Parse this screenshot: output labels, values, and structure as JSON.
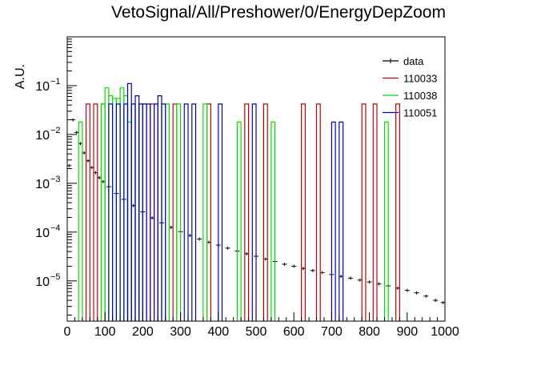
{
  "chart_data": {
    "type": "line",
    "title": "VetoSignal/All/Preshower/0/EnergyDepZoom",
    "xlabel": "",
    "ylabel": "A.U.",
    "xlim": [
      0,
      1000
    ],
    "ylim": [
      1.5e-06,
      1
    ],
    "yscale": "log",
    "grid": false,
    "legend_position": "top-right",
    "x_ticks": [
      0,
      100,
      200,
      300,
      400,
      500,
      600,
      700,
      800,
      900,
      1000
    ],
    "x_tick_labels": [
      "0",
      "100",
      "200",
      "300",
      "400",
      "500",
      "600",
      "700",
      "800",
      "900",
      "1000"
    ],
    "y_ticks": [
      {
        "value": 1e-05,
        "base": "10",
        "exp": "−5"
      },
      {
        "value": 0.0001,
        "base": "10",
        "exp": "−4"
      },
      {
        "value": 0.001,
        "base": "10",
        "exp": "−3"
      },
      {
        "value": 0.01,
        "base": "10",
        "exp": "−2"
      },
      {
        "value": 0.1,
        "base": "10",
        "exp": "−1"
      }
    ],
    "series": [
      {
        "name": "data",
        "color": "#000000",
        "style": "errorbar",
        "points": [
          [
            5,
            0.0023
          ],
          [
            15,
            0.02
          ],
          [
            25,
            0.011
          ],
          [
            35,
            0.0065
          ],
          [
            45,
            0.0042
          ],
          [
            55,
            0.0029
          ],
          [
            65,
            0.0021
          ],
          [
            75,
            0.00165
          ],
          [
            85,
            0.0013
          ],
          [
            95,
            0.00108
          ],
          [
            110,
            0.00085
          ],
          [
            130,
            0.00062
          ],
          [
            150,
            0.00047
          ],
          [
            175,
            0.00035
          ],
          [
            200,
            0.00026
          ],
          [
            225,
            0.000195
          ],
          [
            250,
            0.000155
          ],
          [
            275,
            0.000125
          ],
          [
            300,
            0.000102
          ],
          [
            325,
            8.5e-05
          ],
          [
            350,
            7.2e-05
          ],
          [
            375,
            6.2e-05
          ],
          [
            400,
            5.4e-05
          ],
          [
            425,
            4.7e-05
          ],
          [
            450,
            4.1e-05
          ],
          [
            475,
            3.6e-05
          ],
          [
            500,
            3.2e-05
          ],
          [
            525,
            2.8e-05
          ],
          [
            550,
            2.5e-05
          ],
          [
            575,
            2.2e-05
          ],
          [
            600,
            2e-05
          ],
          [
            625,
            1.8e-05
          ],
          [
            650,
            1.63e-05
          ],
          [
            675,
            1.48e-05
          ],
          [
            700,
            1.35e-05
          ],
          [
            725,
            1.24e-05
          ],
          [
            750,
            1.14e-05
          ],
          [
            775,
            1.04e-05
          ],
          [
            800,
            9.5e-06
          ],
          [
            825,
            8.7e-06
          ],
          [
            850,
            7.9e-06
          ],
          [
            875,
            7.1e-06
          ],
          [
            900,
            6.4e-06
          ],
          [
            925,
            5.7e-06
          ],
          [
            950,
            4.9e-06
          ],
          [
            975,
            4e-06
          ],
          [
            995,
            3.6e-06
          ]
        ]
      },
      {
        "name": "110033",
        "color": "#cc0000",
        "style": "step",
        "bin_width": 10,
        "bins": [
          [
            50,
            0.042
          ],
          [
            70,
            0.042
          ],
          [
            90,
            0.042
          ],
          [
            220,
            0.042
          ],
          [
            280,
            0.042
          ],
          [
            370,
            0.042
          ],
          [
            470,
            0.042
          ],
          [
            520,
            0.042
          ],
          [
            620,
            0.042
          ],
          [
            660,
            0.042
          ],
          [
            780,
            0.042
          ],
          [
            810,
            0.042
          ],
          [
            870,
            0.042
          ]
        ]
      },
      {
        "name": "110038",
        "color": "#00dd00",
        "style": "step",
        "bin_width": 10,
        "bins": [
          [
            30,
            0.018
          ],
          [
            90,
            0.042
          ],
          [
            100,
            0.09
          ],
          [
            110,
            0.062
          ],
          [
            120,
            0.055
          ],
          [
            130,
            0.055
          ],
          [
            140,
            0.09
          ],
          [
            150,
            0.062
          ],
          [
            160,
            0.018
          ],
          [
            170,
            0.042
          ],
          [
            190,
            0.042
          ],
          [
            260,
            0.042
          ],
          [
            290,
            0.042
          ],
          [
            360,
            0.042
          ],
          [
            450,
            0.018
          ],
          [
            540,
            0.018
          ],
          [
            840,
            0.018
          ]
        ]
      },
      {
        "name": "110051",
        "color": "#0000cc",
        "style": "step",
        "bin_width": 10,
        "bins": [
          [
            110,
            0.042
          ],
          [
            130,
            0.042
          ],
          [
            150,
            0.042
          ],
          [
            160,
            0.11
          ],
          [
            170,
            0.042
          ],
          [
            180,
            0.062
          ],
          [
            190,
            0.042
          ],
          [
            200,
            0.042
          ],
          [
            210,
            0.042
          ],
          [
            230,
            0.042
          ],
          [
            240,
            0.062
          ],
          [
            250,
            0.042
          ],
          [
            310,
            0.042
          ],
          [
            330,
            0.042
          ],
          [
            400,
            0.042
          ],
          [
            490,
            0.042
          ],
          [
            700,
            0.018
          ],
          [
            720,
            0.018
          ]
        ]
      }
    ]
  }
}
